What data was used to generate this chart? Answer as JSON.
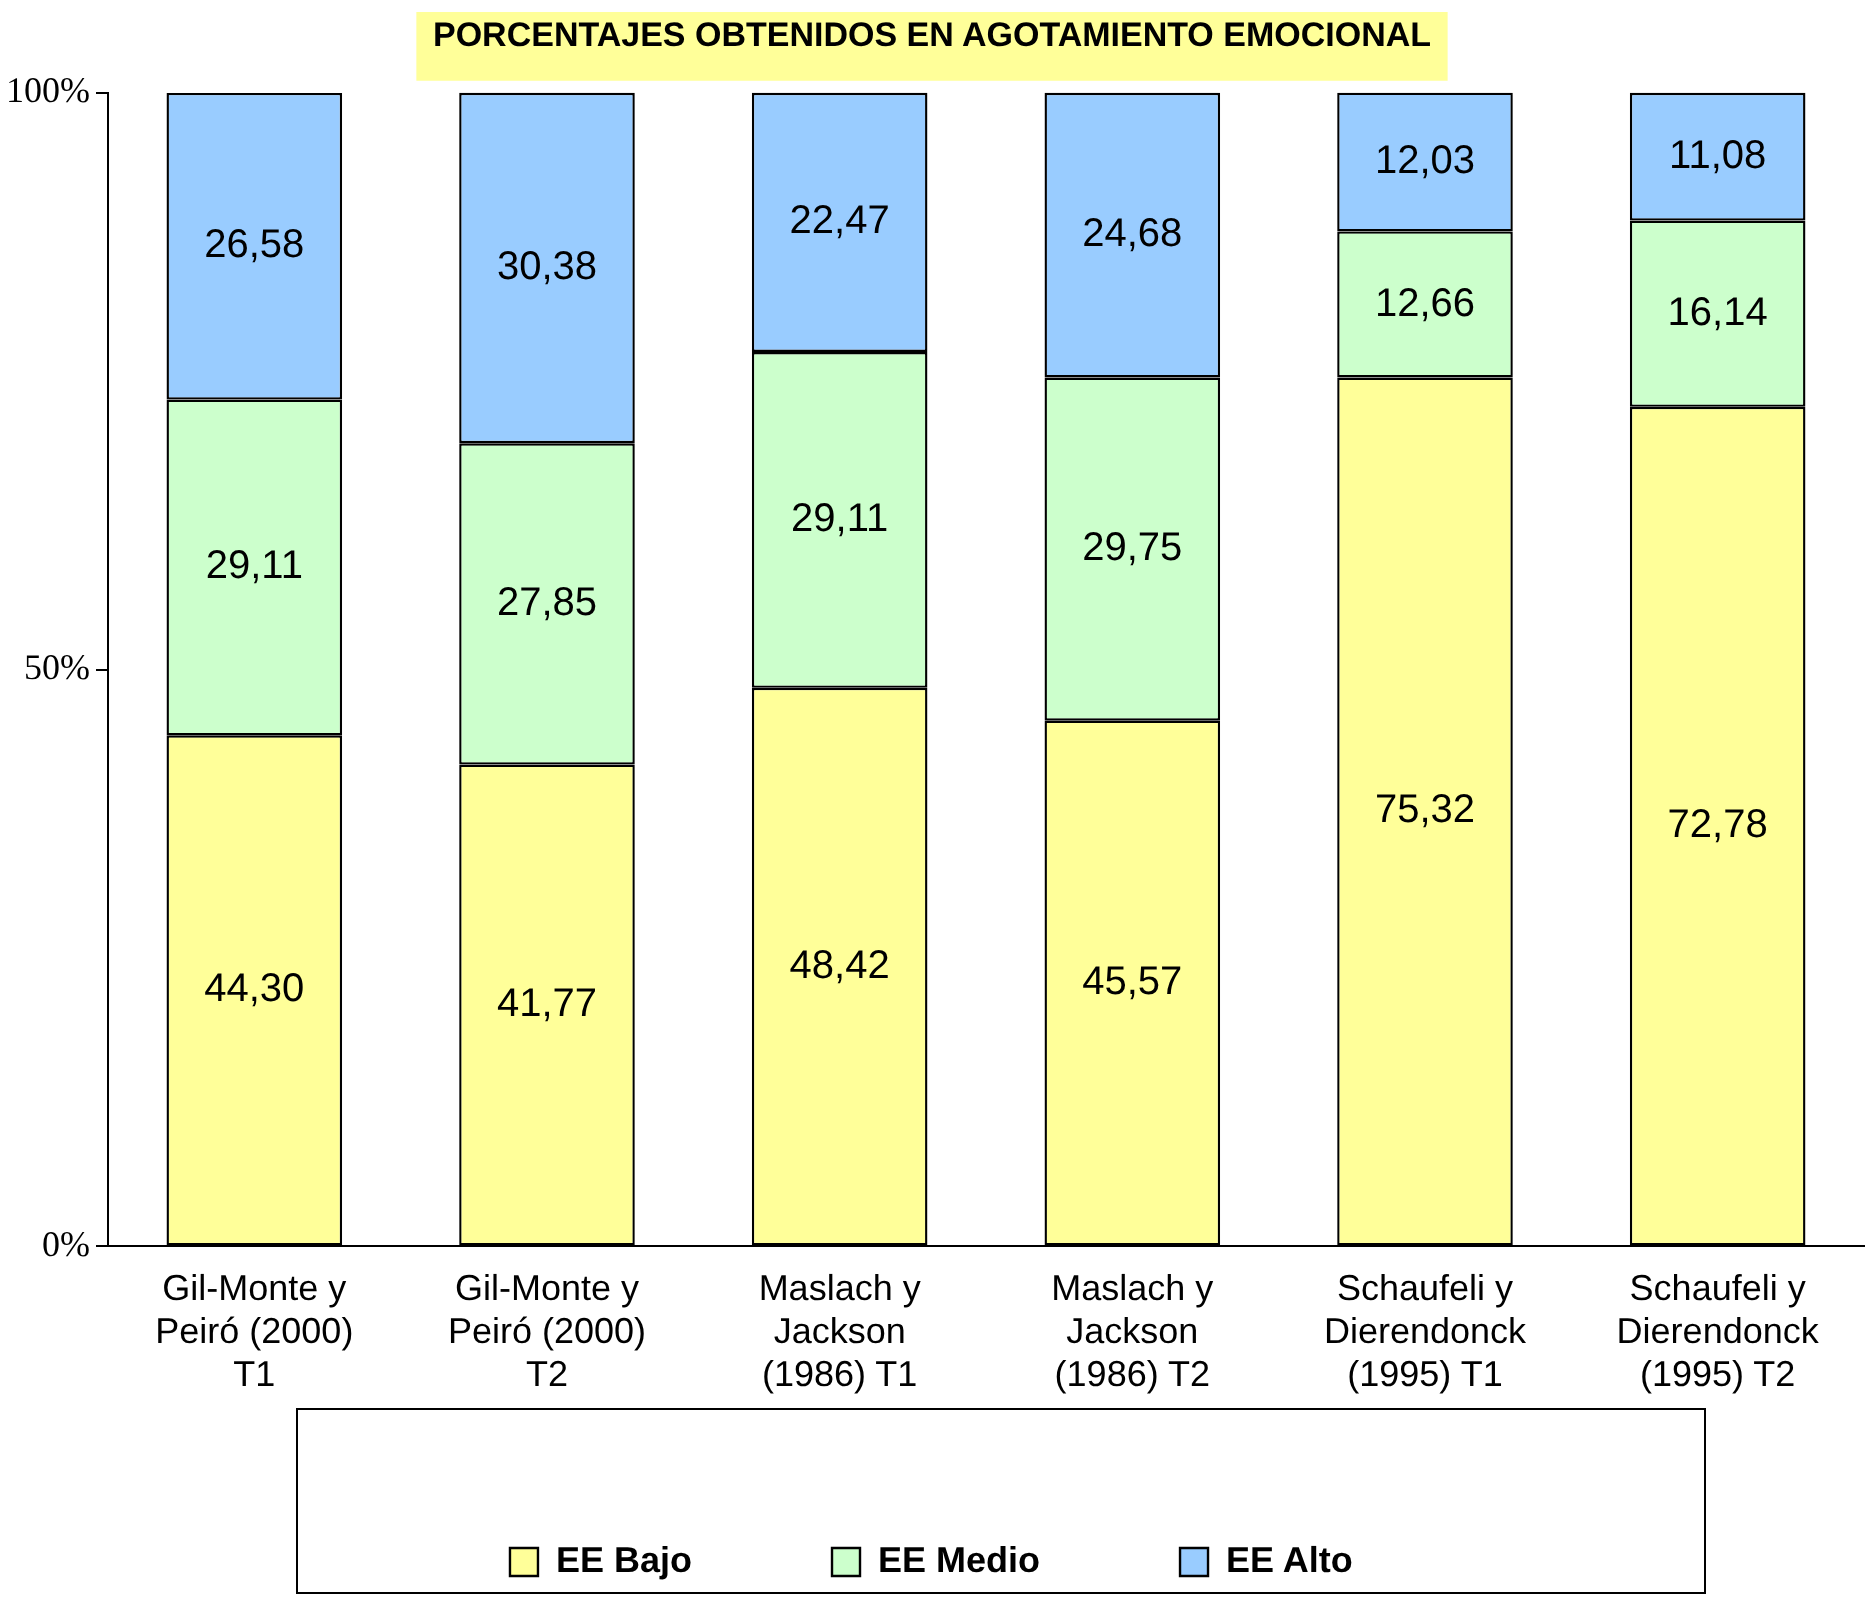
{
  "chart_data": {
    "type": "bar",
    "stacked": true,
    "title": "PORCENTAJES OBTENIDOS EN AGOTAMIENTO EMOCIONAL",
    "categories": [
      "Gil-Monte y Peiró (2000) T1",
      "Gil-Monte y Peiró (2000) T2",
      "Maslach y Jackson (1986) T1",
      "Maslach y Jackson (1986) T2",
      "Schaufeli y Dierendonck (1995) T1",
      "Schaufeli y Dierendonck (1995) T2"
    ],
    "series": [
      {
        "name": "EE Bajo",
        "color": "#ffff99",
        "values": [
          44.3,
          41.77,
          48.42,
          45.57,
          75.32,
          72.78
        ],
        "value_labels": [
          "44,30",
          "41,77",
          "48,42",
          "45,57",
          "75,32",
          "72,78"
        ]
      },
      {
        "name": "EE Medio",
        "color": "#ccffcc",
        "values": [
          29.11,
          27.85,
          29.11,
          29.75,
          12.66,
          16.14
        ],
        "value_labels": [
          "29,11",
          "27,85",
          "29,11",
          "29,75",
          "12,66",
          "16,14"
        ]
      },
      {
        "name": "EE Alto",
        "color": "#99ccff",
        "values": [
          26.58,
          30.38,
          22.47,
          24.68,
          12.03,
          11.08
        ],
        "value_labels": [
          "26,58",
          "30,38",
          "22,47",
          "24,68",
          "12,03",
          "11,08"
        ]
      }
    ],
    "ylim": [
      0,
      100
    ],
    "yticks": [
      {
        "value": 0,
        "label": "0%"
      },
      {
        "value": 50,
        "label": "50%"
      },
      {
        "value": 100,
        "label": "100%"
      }
    ],
    "legend": "bottom"
  }
}
